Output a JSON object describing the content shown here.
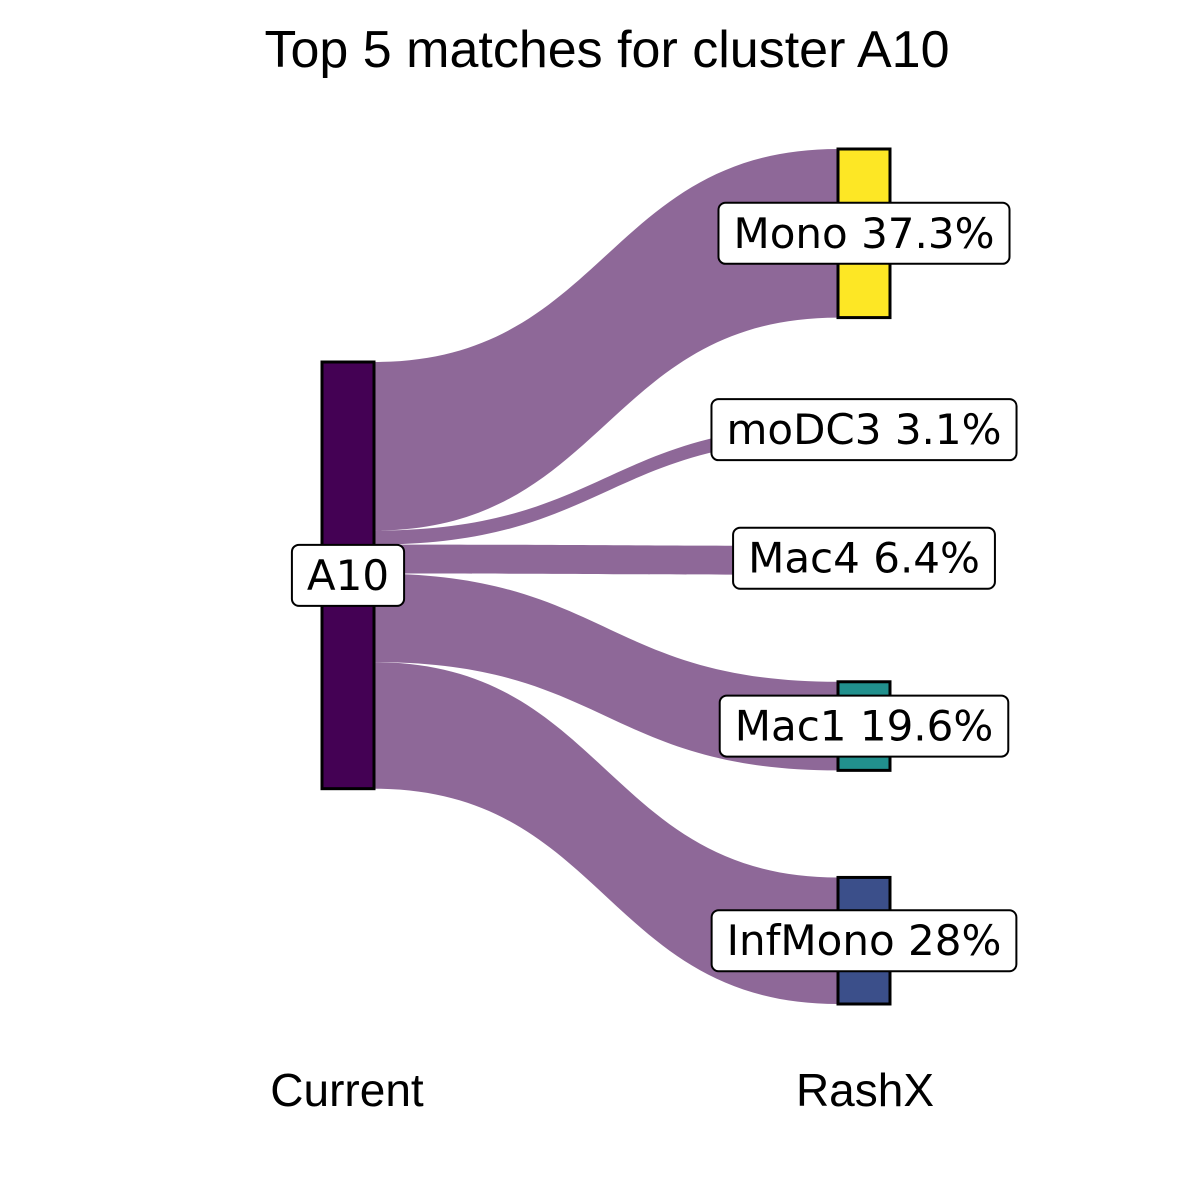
{
  "chart_data": {
    "type": "sankey",
    "title": "Top 5 matches for cluster A10",
    "axis_labels": [
      "Current",
      "RashX"
    ],
    "flow_color": "#8e6898",
    "source": {
      "name": "A10",
      "color": "#440154"
    },
    "targets": [
      {
        "name": "Mono",
        "value": 37.3,
        "label": "Mono 37.3%",
        "color": "#fde725",
        "show_bar": true
      },
      {
        "name": "moDC3",
        "value": 3.1,
        "label": "moDC3 3.1%",
        "color": "#8e6898",
        "show_bar": false
      },
      {
        "name": "Mac4",
        "value": 6.4,
        "label": "Mac4 6.4%",
        "color": "#8e6898",
        "show_bar": false
      },
      {
        "name": "Mac1",
        "value": 19.6,
        "label": "Mac1 19.6%",
        "color": "#21908d",
        "show_bar": true
      },
      {
        "name": "InfMono",
        "value": 28,
        "label": "InfMono 28%",
        "color": "#3b4f8a",
        "show_bar": true
      }
    ]
  }
}
